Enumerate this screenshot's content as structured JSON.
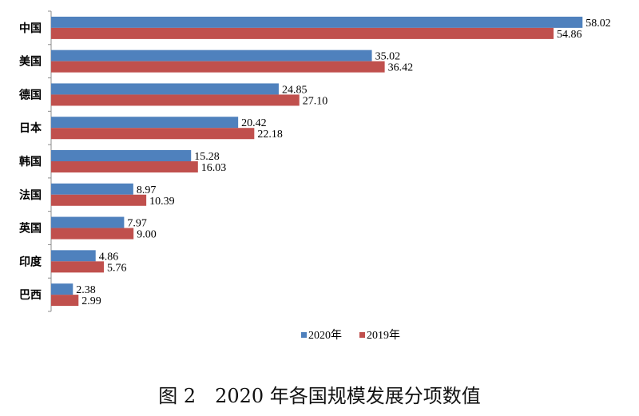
{
  "chart_data": {
    "type": "bar",
    "orientation": "horizontal",
    "title": "图 2　2020 年各国规模发展分项数值",
    "categories": [
      "中国",
      "美国",
      "德国",
      "日本",
      "韩国",
      "法国",
      "英国",
      "印度",
      "巴西"
    ],
    "series": [
      {
        "name": "2020年",
        "color": "#4F81BD",
        "values": [
          58.02,
          35.02,
          24.85,
          20.42,
          15.28,
          8.97,
          7.97,
          4.86,
          2.38
        ],
        "labels": [
          "58.02",
          "35.02",
          "24.85",
          "20.42",
          "15.28",
          "8.97",
          "7.97",
          "4.86",
          "2.38"
        ]
      },
      {
        "name": "2019年",
        "color": "#C0504D",
        "values": [
          54.86,
          36.42,
          27.1,
          22.18,
          16.03,
          10.39,
          9.0,
          5.76,
          2.99
        ],
        "labels": [
          "54.86",
          "36.42",
          "27.10",
          "22.18",
          "16.03",
          "10.39",
          "9.00",
          "5.76",
          "2.99"
        ]
      }
    ],
    "xlim": [
      0,
      60
    ],
    "grid": false,
    "legend_position": "bottom-center"
  }
}
